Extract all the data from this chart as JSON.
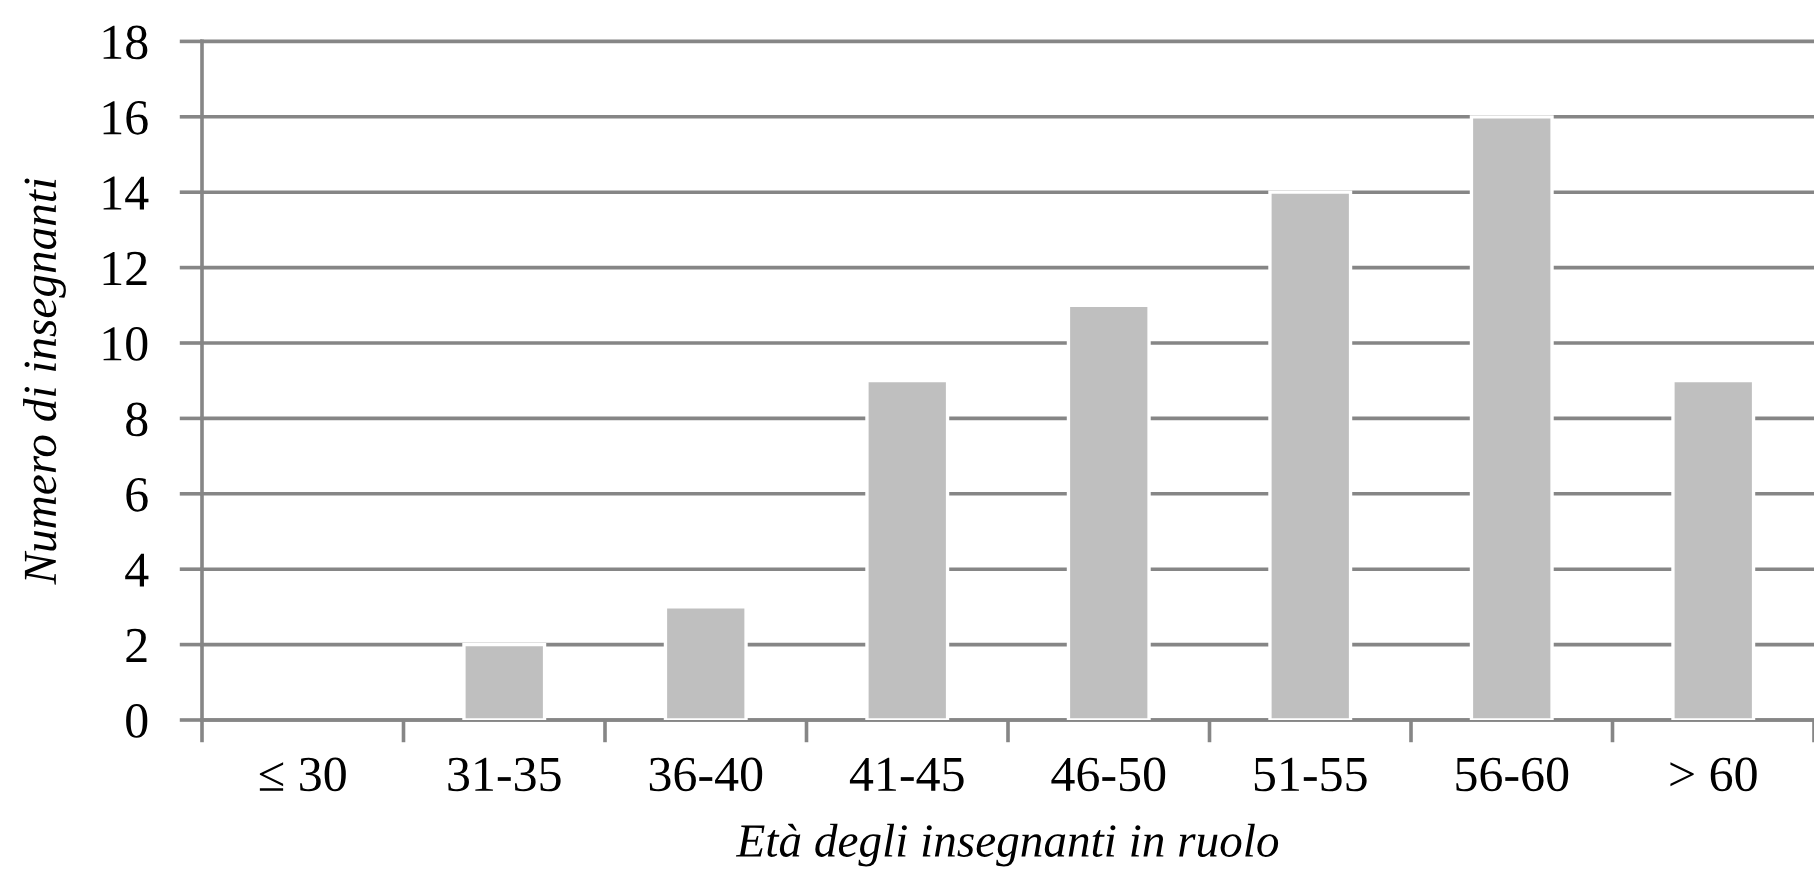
{
  "chart_data": {
    "type": "bar",
    "xlabel": "Età degli insegnanti in ruolo",
    "ylabel": "Numero di insegnanti",
    "categories": [
      "≤ 30",
      "31-35",
      "36-40",
      "41-45",
      "46-50",
      "51-55",
      "56-60",
      "> 60"
    ],
    "values": [
      0,
      2,
      3,
      9,
      11,
      14,
      16,
      9
    ],
    "color": "#bfbfbf",
    "ylim": [
      0,
      18
    ],
    "yticks": [
      0,
      2,
      4,
      6,
      8,
      10,
      12,
      14,
      16,
      18
    ],
    "grid": "y"
  }
}
